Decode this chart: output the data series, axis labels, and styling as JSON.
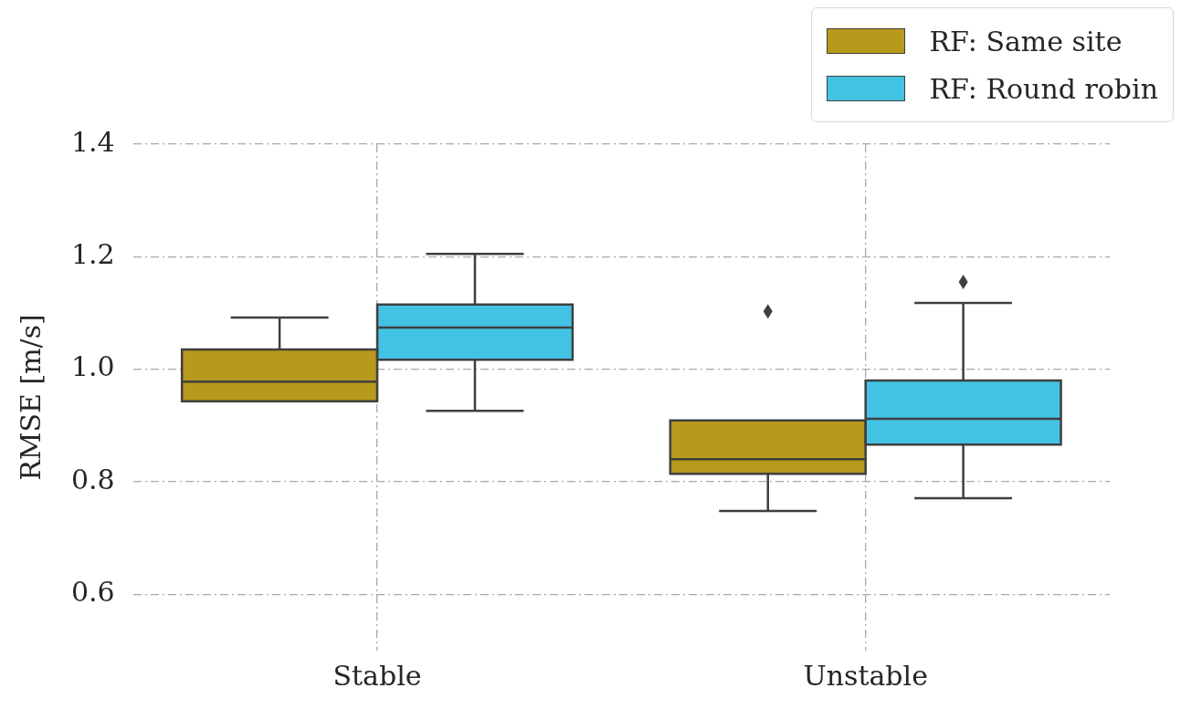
{
  "chart_data": {
    "type": "box",
    "ylabel": "RMSE [m/s]",
    "categories": [
      "Stable",
      "Unstable"
    ],
    "series": [
      {
        "name": "RF: Same site",
        "color": "#b8991b",
        "boxes": [
          {
            "low": 0.943,
            "q1": 0.943,
            "median": 0.978,
            "q3": 1.035,
            "high": 1.092
          },
          {
            "low": 0.748,
            "q1": 0.814,
            "median": 0.84,
            "q3": 0.909,
            "high": 0.909,
            "outliers": [
              1.103
            ]
          }
        ]
      },
      {
        "name": "RF: Round robin",
        "color": "#43c3e3",
        "boxes": [
          {
            "low": 0.926,
            "q1": 1.017,
            "median": 1.074,
            "q3": 1.115,
            "high": 1.205
          },
          {
            "low": 0.771,
            "q1": 0.866,
            "median": 0.912,
            "q3": 0.98,
            "high": 1.118,
            "outliers": [
              1.155
            ]
          }
        ]
      }
    ],
    "ylim": [
      0.5,
      1.4
    ],
    "yticks": [
      0.6,
      0.8,
      {
        "value": 1.0,
        "label": "1.0"
      },
      1.2,
      1.4
    ],
    "grid": true,
    "legend": "top right",
    "marker": "diamond"
  }
}
